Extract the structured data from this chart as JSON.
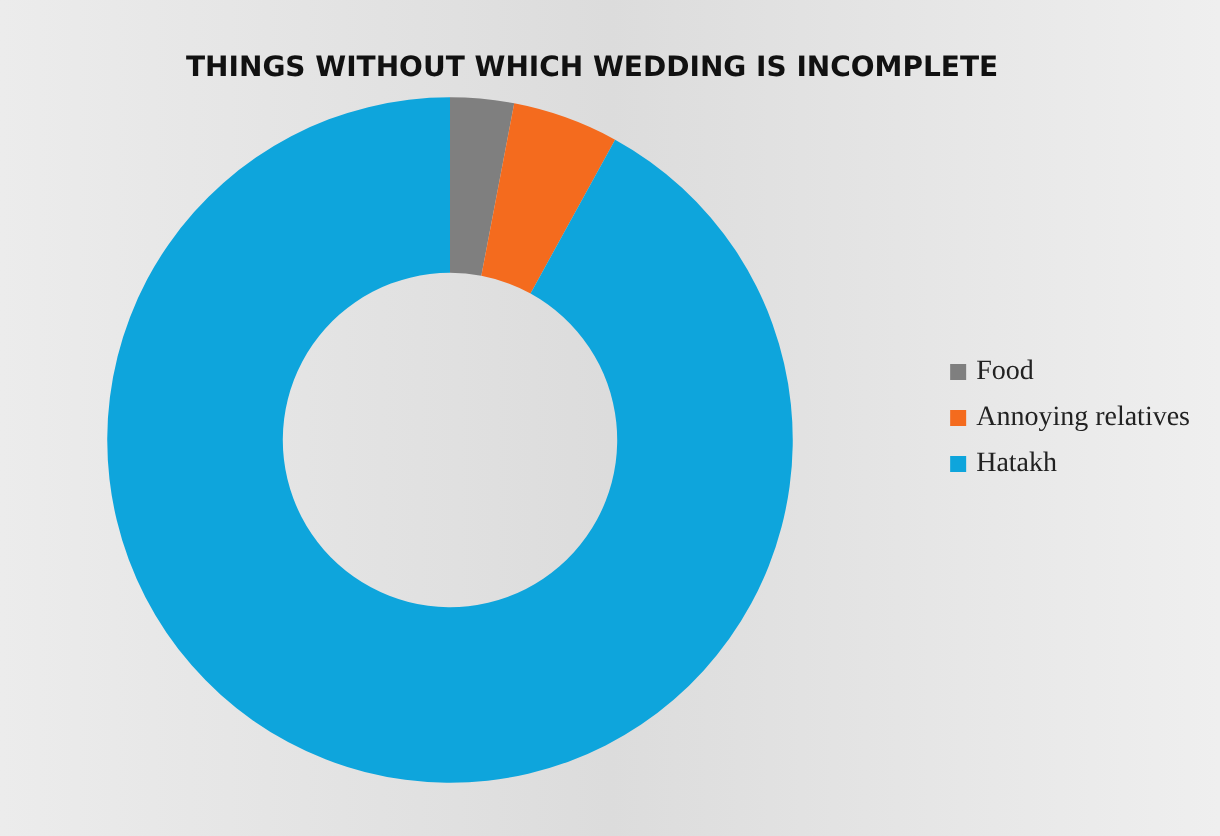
{
  "chart_data": {
    "type": "donut",
    "title": "THINGS WITHOUT WHICH WEDDING IS INCOMPLETE",
    "categories": [
      "Food",
      "Annoying relatives",
      "Hatakh"
    ],
    "values": [
      3,
      5,
      92
    ],
    "colors": [
      "#7f7f7f",
      "#f46b1e",
      "#0ea5dc"
    ],
    "legend": "right"
  }
}
